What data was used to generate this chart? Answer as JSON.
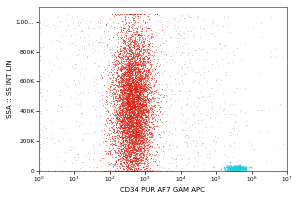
{
  "title": "",
  "xlabel": "CD34 PUR AF7 GAM APC",
  "ylabel": "SSA :: SS INT LIN",
  "xlim": [
    1.0,
    10000000.0
  ],
  "ylim": [
    0,
    1100000
  ],
  "yticks": [
    0,
    200000,
    400000,
    600000,
    800000,
    1000000
  ],
  "ytick_labels": [
    "0",
    "200K",
    "400K",
    "600K",
    "800K",
    "1,00..."
  ],
  "background_color": "#ffffff",
  "plot_bg_color": "#ffffff",
  "red_cluster_x_center_log": 2.65,
  "red_cluster_x_std_log": 0.28,
  "red_cluster_y_center": 420000,
  "red_cluster_y_std": 270000,
  "red_n_points": 6000,
  "cyan_cluster_x_center_log": 5.55,
  "cyan_cluster_x_std_log": 0.15,
  "cyan_cluster_y_center": 18000,
  "cyan_cluster_y_std": 10000,
  "cyan_n_points": 180,
  "gray_n_points": 1200,
  "gray_color": "#aaaaaa",
  "red_color": "#dd2010",
  "cyan_color": "#22ccdd",
  "font_size": 5,
  "tick_font_size": 4.2,
  "figsize": [
    3.0,
    2.0
  ],
  "dpi": 100
}
